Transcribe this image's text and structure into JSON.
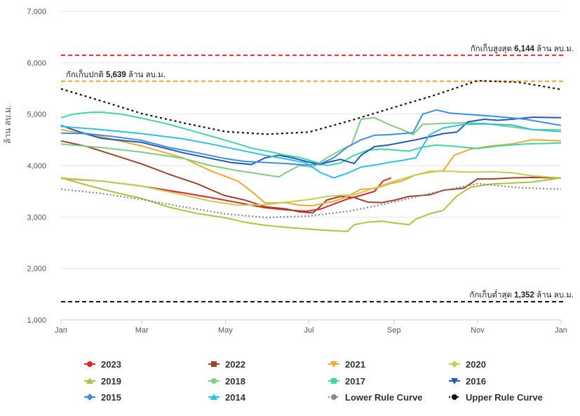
{
  "chart_data": {
    "type": "line",
    "ylabel": "ล้าน ลบ.ม.",
    "xlabel": "",
    "ylim": [
      1000,
      7000
    ],
    "y_ticks": [
      "1,000",
      "2,000",
      "3,000",
      "4,000",
      "5,000",
      "6,000",
      "7,000"
    ],
    "x_ticks": [
      {
        "label": "Jan",
        "day": 1
      },
      {
        "label": "Mar",
        "day": 60
      },
      {
        "label": "May",
        "day": 121
      },
      {
        "label": "Jul",
        "day": 182
      },
      {
        "label": "Sep",
        "day": 244
      },
      {
        "label": "Nov",
        "day": 305
      },
      {
        "label": "Jan",
        "day": 366
      }
    ],
    "grid": true,
    "legend_position": "bottom",
    "reference_lines": [
      {
        "value": 6144,
        "color": "#e8202a",
        "text_before": "กักเก็บสูงสุด",
        "value_label": "6,144",
        "text_after": "ล้าน ลบ.ม.",
        "label_align": "right"
      },
      {
        "value": 5639,
        "color": "#f5a623",
        "text_before": "กักเก็บปกติ",
        "value_label": "5,639",
        "text_after": "ล้าน ลบ.ม.",
        "label_align": "left"
      },
      {
        "value": 1352,
        "color": "#111111",
        "text_before": "กักเก็บต่ำสุด",
        "value_label": "1,352",
        "text_after": "ล้าน ลบ.ม.",
        "label_align": "right"
      }
    ],
    "series": [
      {
        "name": "2023",
        "color": "#e8202a",
        "marker": "circle",
        "points": [
          [
            1,
            3750
          ],
          [
            30,
            3700
          ],
          [
            60,
            3600
          ],
          [
            90,
            3470
          ],
          [
            110,
            3380
          ],
          [
            130,
            3280
          ],
          [
            150,
            3180
          ],
          [
            165,
            3140
          ],
          [
            180,
            3110
          ],
          [
            190,
            3150
          ],
          [
            200,
            3250
          ],
          [
            210,
            3350
          ],
          [
            220,
            3420
          ],
          [
            230,
            3500
          ],
          [
            236,
            3700
          ],
          [
            242,
            3760
          ]
        ]
      },
      {
        "name": "2022",
        "color": "#a0412a",
        "marker": "square",
        "points": [
          [
            1,
            4480
          ],
          [
            20,
            4370
          ],
          [
            40,
            4200
          ],
          [
            60,
            4030
          ],
          [
            80,
            3830
          ],
          [
            100,
            3650
          ],
          [
            120,
            3420
          ],
          [
            135,
            3330
          ],
          [
            150,
            3200
          ],
          [
            165,
            3160
          ],
          [
            175,
            3100
          ],
          [
            185,
            3080
          ],
          [
            190,
            3200
          ],
          [
            195,
            3330
          ],
          [
            205,
            3400
          ],
          [
            215,
            3380
          ],
          [
            225,
            3290
          ],
          [
            235,
            3280
          ],
          [
            245,
            3330
          ],
          [
            255,
            3400
          ],
          [
            270,
            3430
          ],
          [
            280,
            3520
          ],
          [
            295,
            3560
          ],
          [
            305,
            3740
          ],
          [
            315,
            3740
          ],
          [
            330,
            3760
          ],
          [
            345,
            3770
          ],
          [
            366,
            3760
          ]
        ]
      },
      {
        "name": "2021",
        "color": "#f0a830",
        "marker": "triangle-down",
        "points": [
          [
            1,
            4700
          ],
          [
            30,
            4560
          ],
          [
            60,
            4380
          ],
          [
            90,
            4150
          ],
          [
            110,
            3900
          ],
          [
            130,
            3700
          ],
          [
            140,
            3500
          ],
          [
            150,
            3270
          ],
          [
            165,
            3280
          ],
          [
            175,
            3230
          ],
          [
            185,
            3220
          ],
          [
            195,
            3280
          ],
          [
            200,
            3300
          ],
          [
            210,
            3400
          ],
          [
            220,
            3540
          ],
          [
            230,
            3550
          ],
          [
            240,
            3640
          ],
          [
            250,
            3700
          ],
          [
            260,
            3820
          ],
          [
            270,
            3870
          ],
          [
            280,
            3900
          ],
          [
            288,
            4200
          ],
          [
            300,
            4320
          ],
          [
            315,
            4380
          ],
          [
            330,
            4420
          ],
          [
            345,
            4500
          ],
          [
            366,
            4480
          ]
        ]
      },
      {
        "name": "2020",
        "color": "#c3cf50",
        "marker": "diamond",
        "points": [
          [
            1,
            3760
          ],
          [
            30,
            3700
          ],
          [
            60,
            3600
          ],
          [
            90,
            3430
          ],
          [
            110,
            3310
          ],
          [
            130,
            3230
          ],
          [
            150,
            3240
          ],
          [
            170,
            3300
          ],
          [
            185,
            3350
          ],
          [
            195,
            3400
          ],
          [
            205,
            3420
          ],
          [
            215,
            3430
          ],
          [
            225,
            3520
          ],
          [
            235,
            3610
          ],
          [
            245,
            3700
          ],
          [
            255,
            3780
          ],
          [
            270,
            3890
          ],
          [
            285,
            3890
          ],
          [
            300,
            3870
          ],
          [
            315,
            3880
          ],
          [
            330,
            3860
          ],
          [
            345,
            3800
          ],
          [
            366,
            3760
          ]
        ]
      },
      {
        "name": "2019",
        "color": "#a6c83c",
        "marker": "triangle-up",
        "points": [
          [
            1,
            3760
          ],
          [
            20,
            3620
          ],
          [
            40,
            3480
          ],
          [
            60,
            3360
          ],
          [
            80,
            3190
          ],
          [
            100,
            3070
          ],
          [
            120,
            2990
          ],
          [
            135,
            2900
          ],
          [
            150,
            2840
          ],
          [
            165,
            2800
          ],
          [
            180,
            2770
          ],
          [
            195,
            2740
          ],
          [
            210,
            2720
          ],
          [
            215,
            2850
          ],
          [
            225,
            2900
          ],
          [
            235,
            2920
          ],
          [
            245,
            2880
          ],
          [
            255,
            2850
          ],
          [
            260,
            2960
          ],
          [
            270,
            3060
          ],
          [
            280,
            3130
          ],
          [
            290,
            3410
          ],
          [
            300,
            3580
          ],
          [
            315,
            3640
          ],
          [
            330,
            3660
          ],
          [
            345,
            3680
          ],
          [
            366,
            3760
          ]
        ]
      },
      {
        "name": "2018",
        "color": "#7ccf82",
        "marker": "circle",
        "points": [
          [
            1,
            4420
          ],
          [
            30,
            4350
          ],
          [
            60,
            4260
          ],
          [
            90,
            4140
          ],
          [
            110,
            4000
          ],
          [
            130,
            3900
          ],
          [
            150,
            3820
          ],
          [
            160,
            3780
          ],
          [
            165,
            3860
          ],
          [
            175,
            4000
          ],
          [
            185,
            3970
          ],
          [
            195,
            4150
          ],
          [
            205,
            4300
          ],
          [
            213,
            4400
          ],
          [
            220,
            4900
          ],
          [
            230,
            4930
          ],
          [
            240,
            4800
          ],
          [
            250,
            4700
          ],
          [
            258,
            4600
          ],
          [
            265,
            4800
          ],
          [
            280,
            4820
          ],
          [
            295,
            4830
          ],
          [
            310,
            4820
          ],
          [
            330,
            4750
          ],
          [
            345,
            4700
          ],
          [
            366,
            4700
          ]
        ]
      },
      {
        "name": "2017",
        "color": "#3dd9a0",
        "marker": "square",
        "points": [
          [
            1,
            4930
          ],
          [
            10,
            5000
          ],
          [
            20,
            5030
          ],
          [
            30,
            5040
          ],
          [
            45,
            5000
          ],
          [
            60,
            4920
          ],
          [
            80,
            4800
          ],
          [
            100,
            4650
          ],
          [
            120,
            4500
          ],
          [
            140,
            4340
          ],
          [
            155,
            4260
          ],
          [
            165,
            4200
          ],
          [
            175,
            4160
          ],
          [
            185,
            4080
          ],
          [
            195,
            4000
          ],
          [
            205,
            4050
          ],
          [
            215,
            4200
          ],
          [
            225,
            4300
          ],
          [
            235,
            4320
          ],
          [
            245,
            4300
          ],
          [
            255,
            4280
          ],
          [
            265,
            4360
          ],
          [
            275,
            4400
          ],
          [
            290,
            4370
          ],
          [
            305,
            4330
          ],
          [
            320,
            4380
          ],
          [
            340,
            4420
          ],
          [
            366,
            4440
          ]
        ]
      },
      {
        "name": "2016",
        "color": "#1e5bb8",
        "marker": "triangle-down",
        "points": [
          [
            1,
            4780
          ],
          [
            15,
            4650
          ],
          [
            30,
            4530
          ],
          [
            60,
            4450
          ],
          [
            90,
            4250
          ],
          [
            110,
            4140
          ],
          [
            125,
            4060
          ],
          [
            140,
            4020
          ],
          [
            150,
            4150
          ],
          [
            160,
            4200
          ],
          [
            170,
            4150
          ],
          [
            180,
            4080
          ],
          [
            190,
            4020
          ],
          [
            195,
            4060
          ],
          [
            205,
            4120
          ],
          [
            215,
            4040
          ],
          [
            220,
            4200
          ],
          [
            230,
            4370
          ],
          [
            240,
            4400
          ],
          [
            250,
            4450
          ],
          [
            260,
            4500
          ],
          [
            270,
            4560
          ],
          [
            280,
            4620
          ],
          [
            290,
            4650
          ],
          [
            298,
            4850
          ],
          [
            310,
            4900
          ],
          [
            320,
            4880
          ],
          [
            330,
            4900
          ],
          [
            345,
            4940
          ],
          [
            366,
            4930
          ]
        ]
      },
      {
        "name": "2015",
        "color": "#3b8ee8",
        "marker": "diamond",
        "points": [
          [
            1,
            4630
          ],
          [
            20,
            4620
          ],
          [
            40,
            4560
          ],
          [
            60,
            4490
          ],
          [
            80,
            4350
          ],
          [
            100,
            4250
          ],
          [
            120,
            4140
          ],
          [
            135,
            4080
          ],
          [
            150,
            4060
          ],
          [
            165,
            4040
          ],
          [
            180,
            4010
          ],
          [
            190,
            4030
          ],
          [
            200,
            4150
          ],
          [
            210,
            4360
          ],
          [
            220,
            4500
          ],
          [
            230,
            4590
          ],
          [
            240,
            4600
          ],
          [
            250,
            4620
          ],
          [
            258,
            4640
          ],
          [
            265,
            5000
          ],
          [
            275,
            5080
          ],
          [
            285,
            5020
          ],
          [
            300,
            4990
          ],
          [
            320,
            4950
          ],
          [
            340,
            4900
          ],
          [
            355,
            4830
          ],
          [
            366,
            4780
          ]
        ]
      },
      {
        "name": "2014",
        "color": "#29c2e6",
        "marker": "triangle-up",
        "points": [
          [
            1,
            4760
          ],
          [
            30,
            4700
          ],
          [
            60,
            4620
          ],
          [
            90,
            4520
          ],
          [
            110,
            4420
          ],
          [
            130,
            4310
          ],
          [
            150,
            4200
          ],
          [
            165,
            4130
          ],
          [
            180,
            4050
          ],
          [
            190,
            3870
          ],
          [
            200,
            3760
          ],
          [
            210,
            3850
          ],
          [
            220,
            3970
          ],
          [
            230,
            4010
          ],
          [
            240,
            4060
          ],
          [
            250,
            4100
          ],
          [
            260,
            4150
          ],
          [
            270,
            4600
          ],
          [
            280,
            4730
          ],
          [
            295,
            4800
          ],
          [
            310,
            4810
          ],
          [
            330,
            4790
          ],
          [
            345,
            4700
          ],
          [
            366,
            4660
          ]
        ]
      },
      {
        "name": "Lower Rule Curve",
        "color": "#888888",
        "marker": "circle",
        "dash": "2,3",
        "points": [
          [
            1,
            3540
          ],
          [
            30,
            3460
          ],
          [
            60,
            3340
          ],
          [
            90,
            3200
          ],
          [
            121,
            3060
          ],
          [
            151,
            2990
          ],
          [
            182,
            3020
          ],
          [
            213,
            3120
          ],
          [
            244,
            3290
          ],
          [
            274,
            3480
          ],
          [
            305,
            3650
          ],
          [
            335,
            3570
          ],
          [
            366,
            3540
          ]
        ]
      },
      {
        "name": "Upper Rule Curve",
        "color": "#111111",
        "marker": "circle",
        "dash": "3,4",
        "points": [
          [
            1,
            5490
          ],
          [
            30,
            5260
          ],
          [
            60,
            5010
          ],
          [
            90,
            4830
          ],
          [
            121,
            4660
          ],
          [
            151,
            4610
          ],
          [
            182,
            4650
          ],
          [
            213,
            4880
          ],
          [
            244,
            5130
          ],
          [
            274,
            5370
          ],
          [
            305,
            5650
          ],
          [
            335,
            5620
          ],
          [
            366,
            5480
          ]
        ]
      }
    ]
  }
}
